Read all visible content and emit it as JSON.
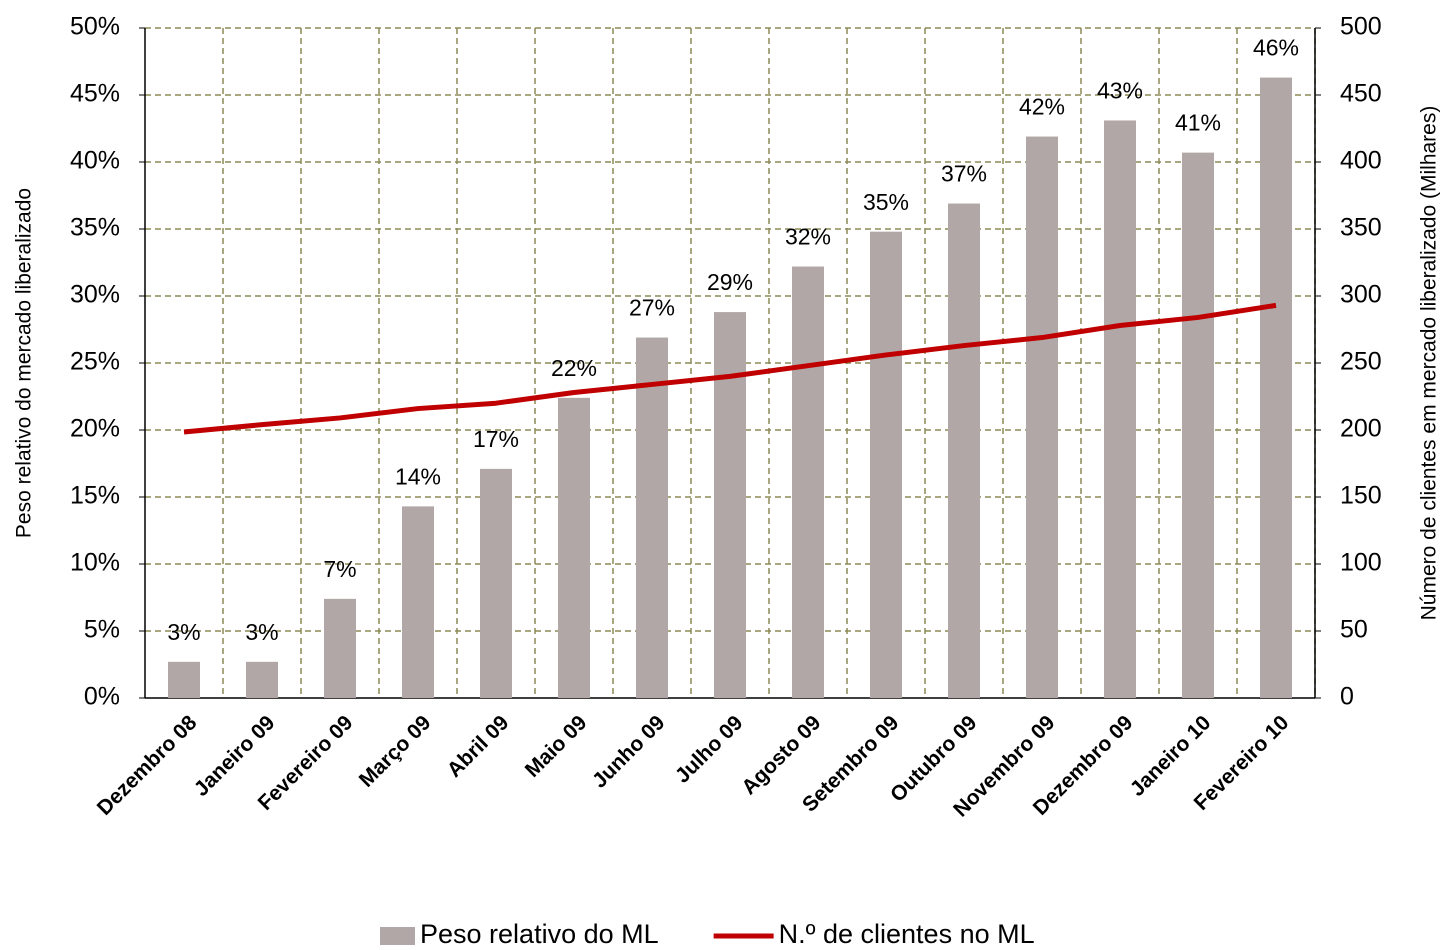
{
  "chart_data": {
    "type": "bar-line",
    "categories": [
      "Dezembro 08",
      "Janeiro 09",
      "Fevereiro 09",
      "Março 09",
      "Abril 09",
      "Maio 09",
      "Junho 09",
      "Julho 09",
      "Agosto 09",
      "Setembro 09",
      "Outubro 09",
      "Novembro 09",
      "Dezembro 09",
      "Janeiro 10",
      "Fevereiro 10"
    ],
    "series": [
      {
        "name": "Peso relativo do ML",
        "type": "bar",
        "color": "#b1a7a6",
        "values": [
          2.7,
          2.7,
          7.4,
          14.3,
          17.1,
          22.4,
          26.9,
          28.8,
          32.2,
          34.8,
          36.9,
          41.9,
          43.1,
          40.7,
          46.3
        ],
        "value_labels": [
          "3%",
          "3%",
          "7%",
          "14%",
          "17%",
          "22%",
          "27%",
          "29%",
          "32%",
          "35%",
          "37%",
          "42%",
          "43%",
          "41%",
          "46%"
        ]
      },
      {
        "name": "N.º de clientes no ML",
        "type": "line",
        "axis": "y2",
        "color": "#c00000",
        "values": [
          198.5,
          204,
          209,
          216,
          220,
          228,
          234,
          240,
          248,
          256,
          263,
          269,
          278,
          284,
          293
        ]
      }
    ],
    "ylabel": "Peso relativo do mercado liberalizado",
    "y2label": "Número de clientes em mercado liberalizado  (Milhares)",
    "ylim": [
      0,
      50
    ],
    "yticks": [
      {
        "value": 0,
        "label": "0%"
      },
      {
        "value": 5,
        "label": "5%"
      },
      {
        "value": 10,
        "label": "10%"
      },
      {
        "value": 15,
        "label": "15%"
      },
      {
        "value": 20,
        "label": "20%"
      },
      {
        "value": 25,
        "label": "25%"
      },
      {
        "value": 30,
        "label": "30%"
      },
      {
        "value": 35,
        "label": "35%"
      },
      {
        "value": 40,
        "label": "40%"
      },
      {
        "value": 45,
        "label": "45%"
      },
      {
        "value": 50,
        "label": "50%"
      }
    ],
    "y2lim": [
      0,
      500
    ],
    "y2ticks": [
      0,
      50,
      100,
      150,
      200,
      250,
      300,
      350,
      400,
      450,
      500
    ],
    "grid": true,
    "grid_color": "#8c8a55",
    "legend": "bottom"
  }
}
